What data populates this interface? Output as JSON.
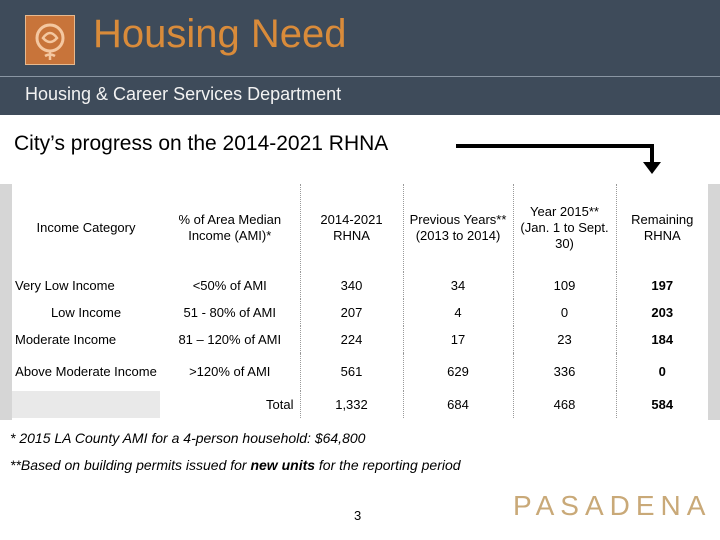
{
  "header": {
    "title": "Housing Need",
    "subtitle": "Housing & Career Services Department"
  },
  "heading": "City’s progress on the 2014-2021 RHNA",
  "table": {
    "columns": [
      "Income Category",
      "% of Area Median Income (AMI)*",
      "2014-2021 RHNA",
      "Previous Years** (2013 to 2014)",
      "Year 2015** (Jan. 1 to Sept. 30)",
      "Remaining RHNA"
    ],
    "rows": [
      {
        "category": "Very Low Income",
        "ami": "<50% of AMI",
        "rhna": "340",
        "previous": "34",
        "year2015": "109",
        "remaining": "197"
      },
      {
        "category": "Low Income",
        "ami": "51 - 80% of AMI",
        "rhna": "207",
        "previous": "4",
        "year2015": "0",
        "remaining": "203"
      },
      {
        "category": "Moderate Income",
        "ami": "81 – 120% of AMI",
        "rhna": "224",
        "previous": "17",
        "year2015": "23",
        "remaining": "184"
      },
      {
        "category": "Above Moderate Income",
        "ami": ">120% of AMI",
        "rhna": "561",
        "previous": "629",
        "year2015": "336",
        "remaining": "0"
      }
    ],
    "total": {
      "label": "Total",
      "rhna": "1,332",
      "previous": "684",
      "year2015": "468",
      "remaining": "584"
    }
  },
  "notes": {
    "note1": "* 2015 LA County AMI for a 4-person household:  $64,800",
    "note2_prefix": "**Based on building permits issued for ",
    "note2_bold": "new units",
    "note2_suffix": " for the reporting period"
  },
  "footer": {
    "brand": "PASADENA",
    "page_number": "3"
  },
  "colors": {
    "header_bg": "#3e4b5a",
    "title": "#d98b3a",
    "brand": "#c9a978"
  }
}
